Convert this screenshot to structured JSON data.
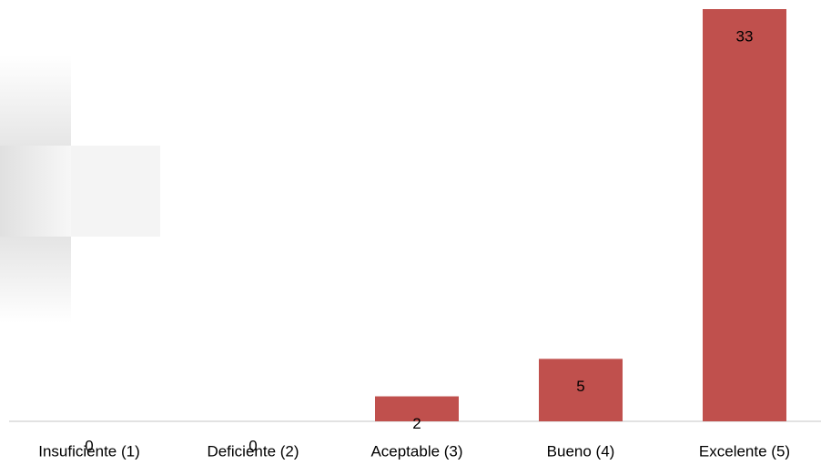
{
  "chart_data": {
    "type": "bar",
    "categories": [
      "Insuficiente (1)",
      "Deficiente (2)",
      "Aceptable (3)",
      "Bueno (4)",
      "Excelente (5)"
    ],
    "values": [
      0,
      0,
      2,
      5,
      33
    ],
    "color": "#c0504d"
  }
}
